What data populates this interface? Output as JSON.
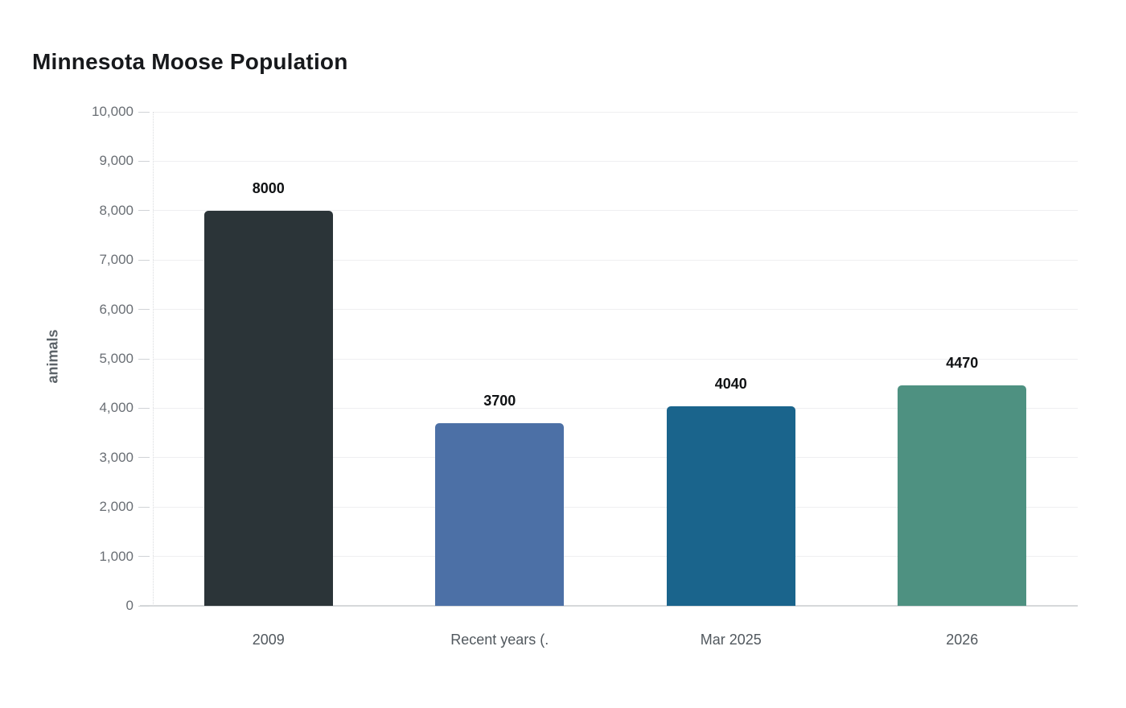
{
  "header": {
    "title": "Minnesota Moose Population"
  },
  "chart_data": {
    "type": "bar",
    "title": "Minnesota Moose Population",
    "categories": [
      "2009",
      "Recent years (.",
      "Mar 2025",
      "2026"
    ],
    "values": [
      8000,
      3700,
      4040,
      4470
    ],
    "data_labels": [
      "8000",
      "3700",
      "4040",
      "4470"
    ],
    "bar_colors": [
      "#2b3438",
      "#4c70a6",
      "#1a648c",
      "#4e9181"
    ],
    "xlabel": "",
    "ylabel": "animals",
    "ylim": [
      0,
      10000
    ],
    "ytick_interval": 1000,
    "ytick_labels": [
      "0",
      "1,000",
      "2,000",
      "3,000",
      "4,000",
      "5,000",
      "6,000",
      "7,000",
      "8,000",
      "9,000",
      "10,000"
    ],
    "grid": true,
    "legend_position": "none"
  },
  "colors": {
    "background": "#ffffff",
    "grid_line": "#efeff1",
    "axis_line": "#d6d8da",
    "tick_mark": "#d0d3d6",
    "tick_label": "#696e74",
    "x_label": "#51585e",
    "value_label": "#101214",
    "title": "#17191c",
    "y_axis_title": "#5c6368"
  }
}
